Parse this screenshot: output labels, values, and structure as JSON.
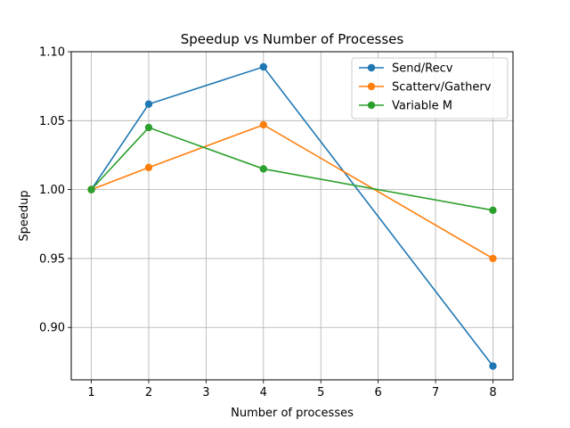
{
  "chart_data": {
    "type": "line",
    "title": "Speedup vs Number of Processes",
    "xlabel": "Number of processes",
    "ylabel": "Speedup",
    "xlim": [
      0.65,
      8.35
    ],
    "ylim": [
      0.862,
      1.1
    ],
    "xticks": [
      1,
      2,
      3,
      4,
      5,
      6,
      7,
      8
    ],
    "yticks": [
      0.9,
      0.95,
      1.0,
      1.05,
      1.1
    ],
    "ytick_labels": [
      "0.90",
      "0.95",
      "1.00",
      "1.05",
      "1.10"
    ],
    "grid": true,
    "legend_position": "top-right",
    "series": [
      {
        "name": "Send/Recv",
        "color": "#1f77b4",
        "x": [
          1,
          2,
          4,
          8
        ],
        "y": [
          1.0,
          1.062,
          1.089,
          0.872
        ]
      },
      {
        "name": "Scatterv/Gatherv",
        "color": "#ff7f0e",
        "x": [
          1,
          2,
          4,
          8
        ],
        "y": [
          1.0,
          1.016,
          1.047,
          0.95
        ]
      },
      {
        "name": "Variable M",
        "color": "#2ca02c",
        "x": [
          1,
          2,
          4,
          8
        ],
        "y": [
          1.0,
          1.045,
          1.015,
          0.985
        ]
      }
    ]
  }
}
